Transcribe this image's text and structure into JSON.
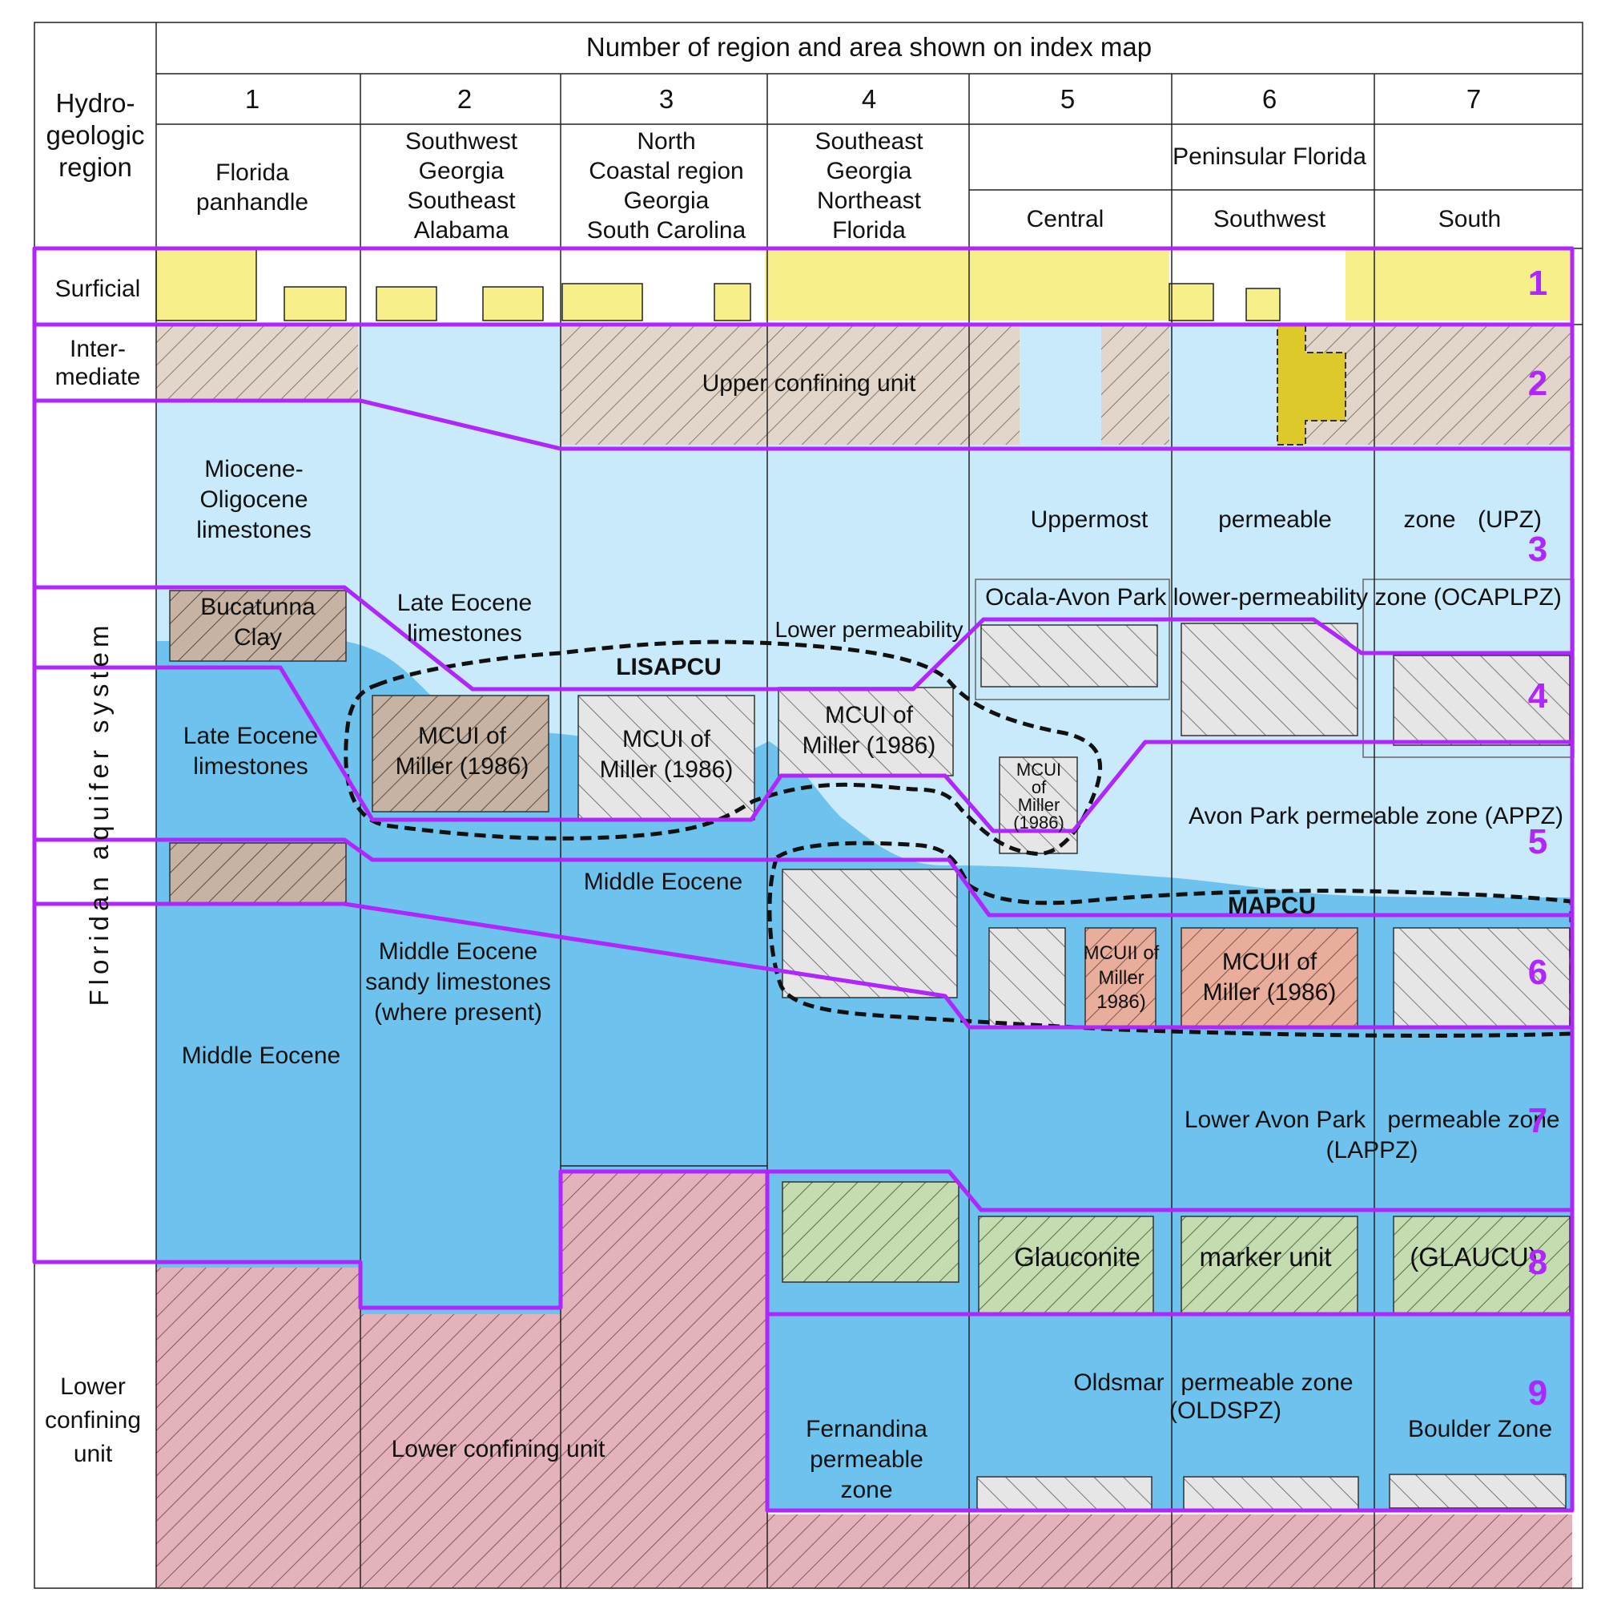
{
  "header": {
    "title": "Number of region and area shown on index map",
    "row_label_lines": [
      "Hydro-",
      "geologic",
      "region"
    ],
    "columns": [
      "1",
      "2",
      "3",
      "4",
      "5",
      "6",
      "7"
    ],
    "region_names": [
      [
        "Florida",
        "panhandle"
      ],
      [
        "Southwest",
        "Georgia",
        "Southeast",
        "Alabama"
      ],
      [
        "North",
        "Coastal region",
        "Georgia",
        "South Carolina"
      ],
      [
        "Southeast",
        "Georgia",
        "Northeast",
        "Florida"
      ]
    ],
    "peninsular": "Peninsular Florida",
    "subregions": [
      "Central",
      "Southwest",
      "South"
    ]
  },
  "rows": {
    "surficial": "Surficial",
    "intermediate": [
      "Inter-",
      "mediate"
    ],
    "floridan": "Floridan aquifer system",
    "lower": [
      "Lower",
      "confining",
      "unit"
    ]
  },
  "labels": {
    "upper_confining": "Upper confining unit",
    "miocene": [
      "Miocene-",
      "Oligocene",
      "limestones"
    ],
    "upz": [
      "Uppermost",
      "permeable",
      "zone",
      "(UPZ)"
    ],
    "bucatunna": [
      "Bucatunna",
      "Clay"
    ],
    "late_eocene_2": [
      "Late Eocene",
      "limestones"
    ],
    "late_eocene_1": [
      "Late Eocene",
      "limestones"
    ],
    "lower_perm": "Lower permeability",
    "ocaplpz": "Ocala-Avon Park lower-permeability zone (OCAPLPZ)",
    "lisapcu": "LISAPCU",
    "mcui": [
      "MCUI of",
      "Miller (1986)"
    ],
    "mcui_small": [
      "MCUI",
      "of",
      "Miller",
      "(1986)"
    ],
    "appz": "Avon Park permeable zone (APPZ)",
    "middle_eocene_3": "Middle Eocene",
    "mapcu": "MAPCU",
    "middle_eocene_sandy": [
      "Middle Eocene",
      "sandy limestones",
      "(where present)"
    ],
    "middle_eocene_1": "Middle Eocene",
    "mcuii_small": [
      "MCUII of",
      "Miller",
      "1986)"
    ],
    "mcuii": [
      "MCUII of",
      "Miller (1986)"
    ],
    "lappz": [
      "Lower Avon Park",
      "permeable zone",
      "(LAPPZ)"
    ],
    "glaucu": [
      "Glauconite",
      "marker unit",
      "(GLAUCU)"
    ],
    "oldspz": [
      "Oldsmar",
      "permeable zone",
      "(OLDSPZ)"
    ],
    "boulder": "Boulder Zone",
    "fernandina": [
      "Fernandina",
      "permeable",
      "zone"
    ],
    "lower_confining": "Lower confining unit"
  },
  "zone_numbers": [
    "1",
    "2",
    "3",
    "4",
    "5",
    "6",
    "7",
    "8",
    "9"
  ],
  "colors": {
    "surficial_yellow": "#f7f08a",
    "light_blue": "#c8eafa",
    "mid_blue": "#6ec3ee",
    "brown_hatch": "#c7b3a3",
    "gray_hatch": "#e6e6e6",
    "pink_hatch": "#e4b2bb",
    "salmon_hatch": "#e9ad9c",
    "green_hatch": "#c5dcb0",
    "dark_yellow": "#ddc92a",
    "outline_purple": "#b026ff"
  }
}
